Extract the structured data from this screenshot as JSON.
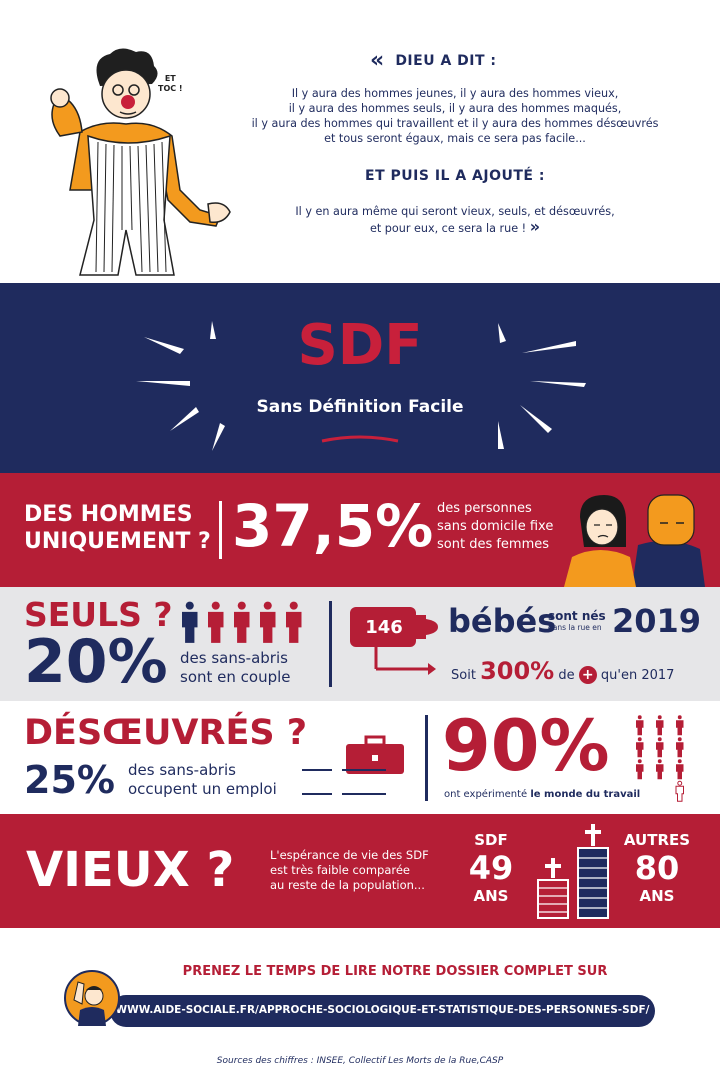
{
  "intro": {
    "heading1": "DIEU A DIT :",
    "lines1": [
      "Il y aura des hommes jeunes, il y aura des hommes vieux,",
      "il y aura des hommes seuls, il y aura des hommes maqués,",
      "il y aura des hommes qui travaillent et il y aura des hommes désœuvrés",
      "et tous seront égaux, mais ce sera pas facile..."
    ],
    "heading2": "ET PUIS IL A AJOUTÉ :",
    "lines2": [
      "Il y en aura même qui seront vieux, seuls, et désœuvrés,",
      "et pour eux, ce sera la rue !"
    ],
    "speech": [
      "ET",
      "TOC !"
    ],
    "open_quote": "«",
    "close_quote": "»"
  },
  "sdf": {
    "title": "SDF",
    "subtitle": "Sans Définition Facile"
  },
  "hommes": {
    "label_line1": "DES HOMMES",
    "label_line2": "UNIQUEMENT ?",
    "percent": "37,5%",
    "desc": [
      "des personnes",
      "sans domicile fixe",
      "sont des femmes"
    ]
  },
  "seuls": {
    "label": "SEULS ?",
    "percent": "20%",
    "desc": [
      "des sans-abris",
      "sont en couple"
    ],
    "people_highlighted": 1,
    "people_total": 5,
    "bottle_value": "146",
    "babies": "bébés",
    "born_line1": "sont nés",
    "born_line2": "dans la rue en",
    "year": "2019",
    "soit": "Soit",
    "increase": "300%",
    "de": "de",
    "plus": "+",
    "since": "qu'en 2017"
  },
  "desoeuvres": {
    "label": "DÉSŒUVRÉS ?",
    "percent": "25%",
    "desc": [
      "des sans-abris",
      "occupent un emploi"
    ],
    "big_percent": "90%",
    "experience_a": "ont expérimenté",
    "experience_b": "le monde du travail",
    "people_highlighted": 9,
    "people_total": 10
  },
  "vieux": {
    "label": "VIEUX ?",
    "desc": [
      "L'espérance de vie des SDF",
      "est très faible comparée",
      "au reste de la population..."
    ],
    "sdf_label": "SDF",
    "sdf_age": "49",
    "sdf_unit": "ANS",
    "others_label": "AUTRES",
    "others_age": "80",
    "others_unit": "ANS"
  },
  "footer": {
    "cta": "PRENEZ LE TEMPS DE LIRE NOTRE DOSSIER COMPLET SUR",
    "url": "WWW.AIDE-SOCIALE.FR/APPROCHE-SOCIOLOGIQUE-ET-STATISTIQUE-DES-PERSONNES-SDF/",
    "sources": "Sources des chiffres : INSEE, Collectif Les Morts de la Rue,CASP"
  },
  "colors": {
    "navy": "#1f2b5e",
    "red": "#b51e36",
    "orange": "#f39a1e",
    "grey": "#e6e6e8"
  }
}
